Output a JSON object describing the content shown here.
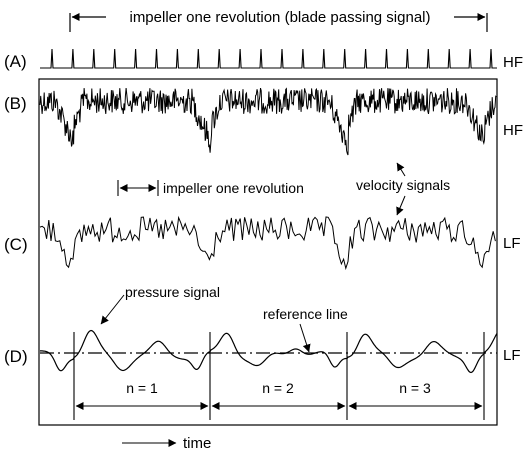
{
  "figure": {
    "top_annotation": "impeller one revolution (blade passing signal)",
    "rows": [
      {
        "id": "A",
        "label": "(A)",
        "band": "HF"
      },
      {
        "id": "B",
        "label": "(B)",
        "band": "HF"
      },
      {
        "id": "C",
        "label": "(C)",
        "band": "LF"
      },
      {
        "id": "D",
        "label": "(D)",
        "band": "LF"
      }
    ],
    "annotations": {
      "revolution": "impeller one revolution",
      "velocity": "velocity signals",
      "pressure": "pressure signal",
      "reference": "reference line"
    },
    "revolution_labels": [
      "n = 1",
      "n = 2",
      "n = 3"
    ],
    "time_label": "time",
    "blade_pulse_count": 22
  }
}
